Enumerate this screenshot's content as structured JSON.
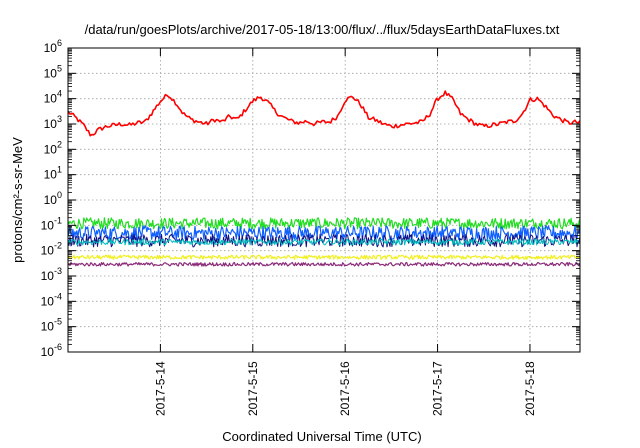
{
  "chart_data": {
    "type": "line",
    "title": "/data/run/goesPlots/archive/2017-05-18/13:00/flux/../flux/5daysEarthDataFluxes.txt",
    "xlabel": "Coordinated Universal Time (UTC)",
    "ylabel": "protons/cm²-s-sr-MeV",
    "y_scale": "log",
    "ylim": [
      1e-06,
      1000000.0
    ],
    "xlim": [
      "2017-05-13 00:00",
      "2017-05-18 13:00"
    ],
    "grid": true,
    "y_ticks": [
      {
        "value": 1e-06,
        "base": "10",
        "exp": "-6"
      },
      {
        "value": 1e-05,
        "base": "10",
        "exp": "-5"
      },
      {
        "value": 0.0001,
        "base": "10",
        "exp": "-4"
      },
      {
        "value": 0.001,
        "base": "10",
        "exp": "-3"
      },
      {
        "value": 0.01,
        "base": "10",
        "exp": "-2"
      },
      {
        "value": 0.1,
        "base": "10",
        "exp": "-1"
      },
      {
        "value": 1,
        "base": "10",
        "exp": "0"
      },
      {
        "value": 10,
        "base": "10",
        "exp": "1"
      },
      {
        "value": 100,
        "base": "10",
        "exp": "2"
      },
      {
        "value": 1000,
        "base": "10",
        "exp": "3"
      },
      {
        "value": 10000,
        "base": "10",
        "exp": "4"
      },
      {
        "value": 100000,
        "base": "10",
        "exp": "5"
      },
      {
        "value": 1000000,
        "base": "10",
        "exp": "6"
      }
    ],
    "x_ticks": [
      {
        "value": "2017-05-14 00:00",
        "label": "2017-5-14"
      },
      {
        "value": "2017-05-15 00:00",
        "label": "2017-5-15"
      },
      {
        "value": "2017-05-16 00:00",
        "label": "2017-5-16"
      },
      {
        "value": "2017-05-17 00:00",
        "label": "2017-5-17"
      },
      {
        "value": "2017-05-18 00:00",
        "label": "2017-5-18"
      }
    ],
    "series": [
      {
        "color": "#ff0000",
        "stroke_width": 1.6,
        "x": [
          "2017-05-13 00:00",
          "2017-05-13 02:00",
          "2017-05-13 04:00",
          "2017-05-13 06:00",
          "2017-05-13 08:00",
          "2017-05-13 10:00",
          "2017-05-13 12:00",
          "2017-05-13 14:00",
          "2017-05-13 16:00",
          "2017-05-13 18:00",
          "2017-05-13 20:00",
          "2017-05-13 22:00",
          "2017-05-14 00:00",
          "2017-05-14 02:00",
          "2017-05-14 04:00",
          "2017-05-14 06:00",
          "2017-05-14 08:00",
          "2017-05-14 10:00",
          "2017-05-14 12:00",
          "2017-05-14 14:00",
          "2017-05-14 16:00",
          "2017-05-14 18:00",
          "2017-05-14 20:00",
          "2017-05-14 22:00",
          "2017-05-15 00:00",
          "2017-05-15 02:00",
          "2017-05-15 04:00",
          "2017-05-15 06:00",
          "2017-05-15 08:00",
          "2017-05-15 10:00",
          "2017-05-15 12:00",
          "2017-05-15 14:00",
          "2017-05-15 16:00",
          "2017-05-15 18:00",
          "2017-05-15 20:00",
          "2017-05-15 22:00",
          "2017-05-16 00:00",
          "2017-05-16 02:00",
          "2017-05-16 04:00",
          "2017-05-16 06:00",
          "2017-05-16 08:00",
          "2017-05-16 10:00",
          "2017-05-16 12:00",
          "2017-05-16 14:00",
          "2017-05-16 16:00",
          "2017-05-16 18:00",
          "2017-05-16 20:00",
          "2017-05-16 22:00",
          "2017-05-17 00:00",
          "2017-05-17 02:00",
          "2017-05-17 04:00",
          "2017-05-17 06:00",
          "2017-05-17 08:00",
          "2017-05-17 10:00",
          "2017-05-17 12:00",
          "2017-05-17 14:00",
          "2017-05-17 16:00",
          "2017-05-17 18:00",
          "2017-05-17 20:00",
          "2017-05-17 22:00",
          "2017-05-18 00:00",
          "2017-05-18 02:00",
          "2017-05-18 04:00",
          "2017-05-18 06:00",
          "2017-05-18 08:00",
          "2017-05-18 10:00",
          "2017-05-18 12:00",
          "2017-05-18 13:00"
        ],
        "y": [
          3000,
          1800,
          900,
          350,
          600,
          800,
          900,
          1000,
          900,
          1100,
          1200,
          3000,
          8000,
          15000,
          7000,
          2500,
          1500,
          1200,
          1000,
          1500,
          1200,
          2000,
          1500,
          3500,
          8000,
          12000,
          7000,
          3000,
          1800,
          1300,
          1100,
          1300,
          1000,
          1200,
          1200,
          2000,
          9000,
          12000,
          6000,
          1800,
          1400,
          1000,
          800,
          900,
          1000,
          1100,
          1200,
          2500,
          10000,
          17000,
          9000,
          2500,
          1500,
          1000,
          800,
          900,
          1000,
          1200,
          1300,
          2500,
          9000,
          10000,
          5000,
          2200,
          1500,
          1100,
          1200,
          1100
        ]
      },
      {
        "color": "#22dd22",
        "stroke_width": 1.2,
        "x": [
          "2017-05-13 00:00",
          "2017-05-18 13:00"
        ],
        "y": [
          0.12,
          0.12
        ],
        "jitter": 0.22
      },
      {
        "color": "#1060ff",
        "stroke_width": 1.2,
        "x": [
          "2017-05-13 00:00",
          "2017-05-18 13:00"
        ],
        "y": [
          0.05,
          0.05
        ],
        "jitter": 0.28
      },
      {
        "color": "#101080",
        "stroke_width": 1.0,
        "x": [
          "2017-05-13 00:00",
          "2017-05-18 13:00"
        ],
        "y": [
          0.025,
          0.025
        ],
        "jitter": 0.25
      },
      {
        "color": "#00bfbf",
        "stroke_width": 1.0,
        "x": [
          "2017-05-13 00:00",
          "2017-05-18 13:00"
        ],
        "y": [
          0.022,
          0.022
        ],
        "jitter": 0.12
      },
      {
        "color": "#f0f020",
        "stroke_width": 1.2,
        "x": [
          "2017-05-13 00:00",
          "2017-05-18 13:00"
        ],
        "y": [
          0.0055,
          0.0055
        ],
        "jitter": 0.08
      },
      {
        "color": "#8b2a78",
        "stroke_width": 1.2,
        "x": [
          "2017-05-13 00:00",
          "2017-05-18 13:00"
        ],
        "y": [
          0.0029,
          0.0029
        ],
        "jitter": 0.07
      }
    ]
  }
}
